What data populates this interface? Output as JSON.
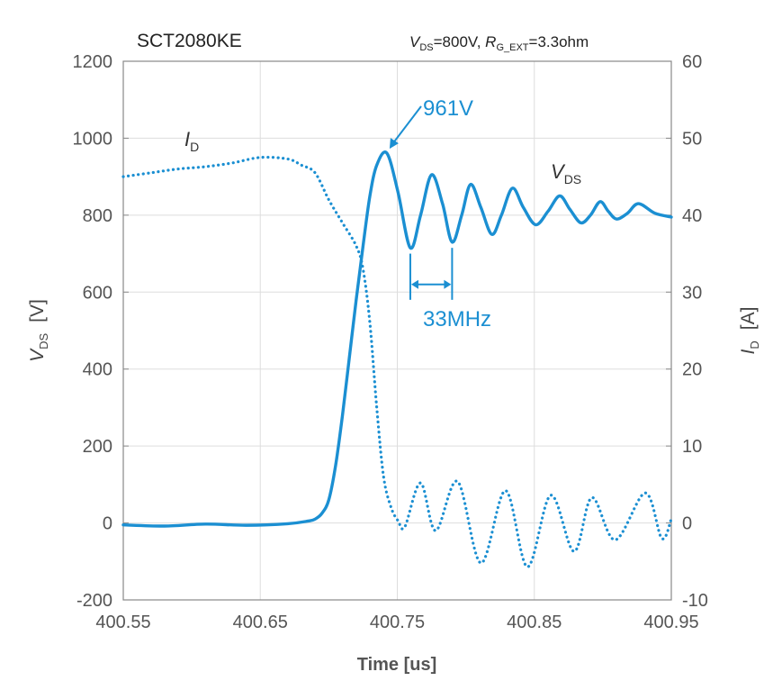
{
  "chart_data": {
    "type": "line",
    "title": "SCT2080KE",
    "conditions": {
      "v_main": "V",
      "v_sub": "DS",
      "v_rest": "=800V, ",
      "r_main": "R",
      "r_sub": "G_EXT",
      "r_rest": "=3.3ohm"
    },
    "xlabel": "Time [us]",
    "ylabel_main": "V",
    "ylabel_sub": "DS",
    "ylabel_unit": "[V]",
    "y2label_main": "I",
    "y2label_sub": "D",
    "y2label_unit": "[A]",
    "xlim": [
      400.55,
      400.95
    ],
    "ylim": [
      -200,
      1200
    ],
    "y2lim": [
      -10,
      60
    ],
    "xticks": [
      "400.55",
      "400.65",
      "400.75",
      "400.85",
      "400.95"
    ],
    "yticks": [
      "-200",
      "0",
      "200",
      "400",
      "600",
      "800",
      "1000",
      "1200"
    ],
    "y2ticks": [
      "-10",
      "0",
      "10",
      "20",
      "30",
      "40",
      "50",
      "60"
    ],
    "grid": true,
    "color": "#1b8fd2",
    "series": [
      {
        "name_main": "V",
        "name_sub": "DS",
        "axis": "left",
        "style": "solid",
        "x": [
          400.55,
          400.58,
          400.61,
          400.64,
          400.67,
          400.685,
          400.69,
          400.695,
          400.7,
          400.705,
          400.71,
          400.715,
          400.72,
          400.725,
          400.73,
          400.735,
          400.7424,
          400.7505,
          400.7595,
          400.767,
          400.775,
          400.783,
          400.79,
          400.797,
          400.8035,
          400.811,
          400.819,
          400.826,
          400.834,
          400.842,
          400.851,
          400.86,
          400.8685,
          400.876,
          400.884,
          400.891,
          400.898,
          400.904,
          400.91,
          400.918,
          400.926,
          400.938,
          400.95
        ],
        "y": [
          -5,
          -8,
          -3,
          -6,
          -2,
          5,
          10,
          25,
          60,
          150,
          280,
          430,
          580,
          720,
          850,
          930,
          961,
          860,
          715,
          800,
          905,
          830,
          730,
          800,
          880,
          820,
          750,
          800,
          870,
          820,
          775,
          810,
          850,
          815,
          780,
          800,
          835,
          810,
          790,
          805,
          830,
          805,
          795
        ]
      },
      {
        "name_main": "I",
        "name_sub": "D",
        "axis": "right",
        "style": "dotted",
        "x": [
          400.55,
          400.57,
          400.59,
          400.61,
          400.63,
          400.65,
          400.67,
          400.68,
          400.69,
          400.7,
          400.71,
          400.72,
          400.725,
          400.73,
          400.735,
          400.74,
          400.7455,
          400.7505,
          400.7555,
          400.767,
          400.778,
          400.794,
          400.811,
          400.829,
          400.845,
          400.862,
          400.879,
          400.892,
          400.909,
          400.931,
          400.943,
          400.95
        ],
        "y": [
          45,
          45.5,
          46,
          46.3,
          46.8,
          47.5,
          47.3,
          46.5,
          45.5,
          42,
          39,
          36,
          33,
          26,
          15,
          6,
          2,
          0.3,
          -0.5,
          5.2,
          -1,
          5.4,
          -5.2,
          4.2,
          -5.7,
          3.6,
          -3.7,
          3.3,
          -2.2,
          3.9,
          -2,
          0.5
        ]
      }
    ],
    "annotations": {
      "peak_label": "961V",
      "peak_x": 400.7424,
      "peak_y": 961,
      "freq_label": "33MHz",
      "freq_x1": 400.7595,
      "freq_x2": 400.79
    }
  }
}
